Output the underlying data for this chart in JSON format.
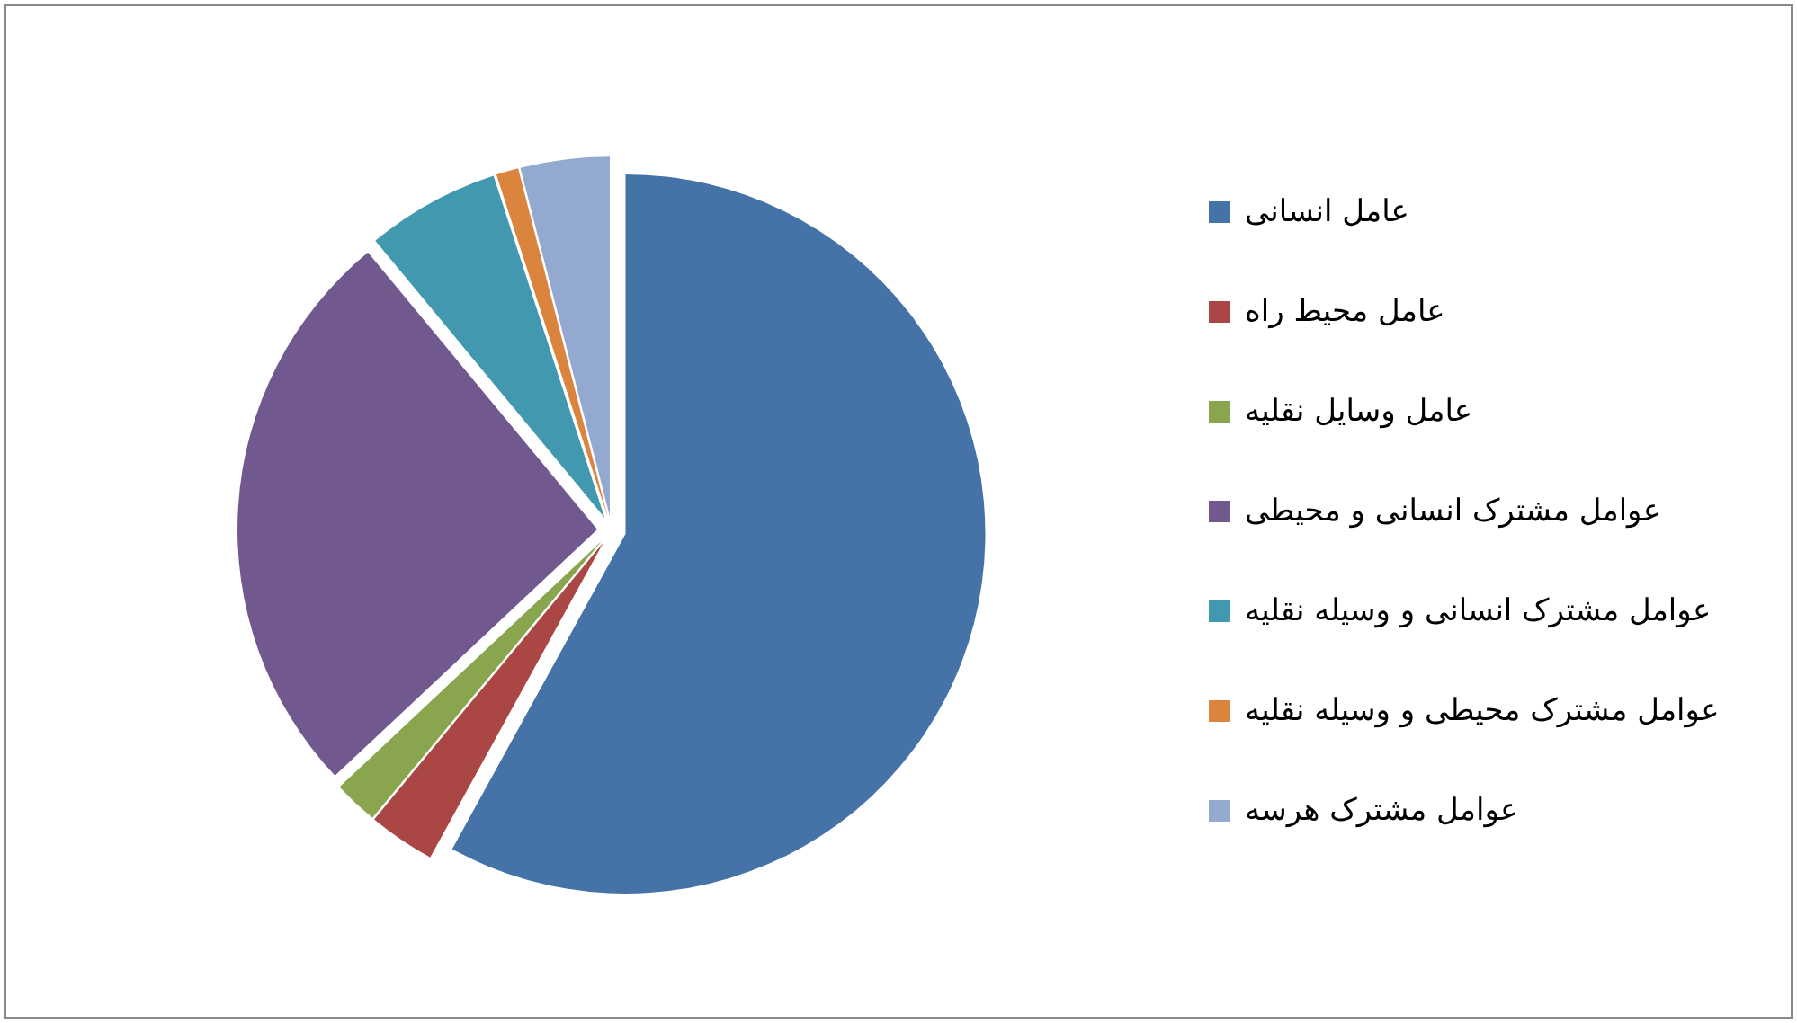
{
  "chart_data": {
    "type": "pie",
    "categories": [
      "عامل انسانی",
      "عامل محیط راه",
      "عامل وسایل نقلیه",
      "عوامل مشترک انسانی و محیطی",
      "عوامل مشترک انسانی و وسیله نقلیه",
      "عوامل مشترک محیطی و وسیله نقلیه",
      "عوامل مشترک هرسه"
    ],
    "values": [
      58,
      3,
      2,
      26,
      6,
      1,
      4
    ],
    "colors": [
      "#4572a7",
      "#aa4643",
      "#89a54e",
      "#71588f",
      "#4198af",
      "#db843d",
      "#93a9cf"
    ],
    "legend": "right"
  }
}
